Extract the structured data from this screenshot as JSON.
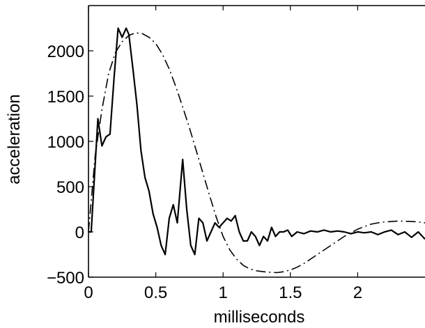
{
  "chart_data": {
    "type": "line",
    "xlabel": "milliseconds",
    "ylabel": "acceleration",
    "xlim": [
      0,
      2.5
    ],
    "ylim": [
      -500,
      2500
    ],
    "xticks": [
      0,
      0.5,
      1,
      1.5,
      2
    ],
    "xtick_labels": [
      "0",
      "0.5",
      "1",
      "1.5",
      "2"
    ],
    "yticks": [
      -500,
      0,
      500,
      1000,
      1500,
      2000
    ],
    "ytick_labels": [
      "−500",
      "0",
      "500",
      "1000",
      "1500",
      "2000"
    ],
    "grid": false,
    "series": [
      {
        "style": "solid",
        "x": [
          0,
          0.02,
          0.04,
          0.07,
          0.1,
          0.13,
          0.16,
          0.19,
          0.22,
          0.25,
          0.28,
          0.3,
          0.33,
          0.36,
          0.39,
          0.42,
          0.45,
          0.48,
          0.51,
          0.54,
          0.57,
          0.6,
          0.63,
          0.66,
          0.7,
          0.73,
          0.76,
          0.79,
          0.82,
          0.85,
          0.88,
          0.91,
          0.94,
          0.97,
          1.0,
          1.03,
          1.06,
          1.09,
          1.12,
          1.15,
          1.18,
          1.21,
          1.24,
          1.27,
          1.3,
          1.33,
          1.36,
          1.39,
          1.42,
          1.45,
          1.48,
          1.51,
          1.55,
          1.6,
          1.65,
          1.7,
          1.75,
          1.8,
          1.85,
          1.9,
          1.95,
          2.0,
          2.05,
          2.1,
          2.15,
          2.2,
          2.25,
          2.3,
          2.35,
          2.4,
          2.45,
          2.5
        ],
        "y": [
          0,
          0,
          500,
          1250,
          950,
          1050,
          1080,
          1700,
          2250,
          2150,
          2250,
          2180,
          1800,
          1400,
          900,
          600,
          450,
          200,
          50,
          -150,
          -250,
          150,
          300,
          100,
          800,
          250,
          -150,
          -250,
          150,
          100,
          -100,
          0,
          100,
          50,
          100,
          150,
          120,
          180,
          0,
          -100,
          -100,
          0,
          -50,
          -150,
          -50,
          -100,
          50,
          -50,
          0,
          0,
          20,
          -50,
          0,
          -20,
          10,
          0,
          20,
          0,
          10,
          0,
          -20,
          0,
          -10,
          0,
          -30,
          0,
          20,
          -30,
          0,
          -60,
          0,
          -80
        ]
      },
      {
        "style": "dashdot",
        "x": [
          0,
          0.05,
          0.1,
          0.15,
          0.2,
          0.25,
          0.3,
          0.35,
          0.4,
          0.45,
          0.5,
          0.55,
          0.6,
          0.65,
          0.7,
          0.75,
          0.8,
          0.85,
          0.9,
          0.95,
          1.0,
          1.05,
          1.1,
          1.15,
          1.2,
          1.25,
          1.3,
          1.35,
          1.4,
          1.45,
          1.5,
          1.55,
          1.6,
          1.65,
          1.7,
          1.75,
          1.8,
          1.85,
          1.9,
          1.95,
          2.0,
          2.05,
          2.1,
          2.15,
          2.2,
          2.25,
          2.3,
          2.35,
          2.4,
          2.45,
          2.5
        ],
        "y": [
          0,
          850,
          1350,
          1750,
          1980,
          2100,
          2170,
          2200,
          2190,
          2150,
          2080,
          1960,
          1800,
          1600,
          1380,
          1150,
          900,
          650,
          400,
          160,
          -50,
          -200,
          -300,
          -370,
          -410,
          -430,
          -440,
          -445,
          -450,
          -440,
          -420,
          -390,
          -350,
          -300,
          -250,
          -200,
          -150,
          -100,
          -50,
          -10,
          30,
          60,
          85,
          100,
          110,
          115,
          120,
          118,
          115,
          110,
          100
        ]
      }
    ]
  }
}
